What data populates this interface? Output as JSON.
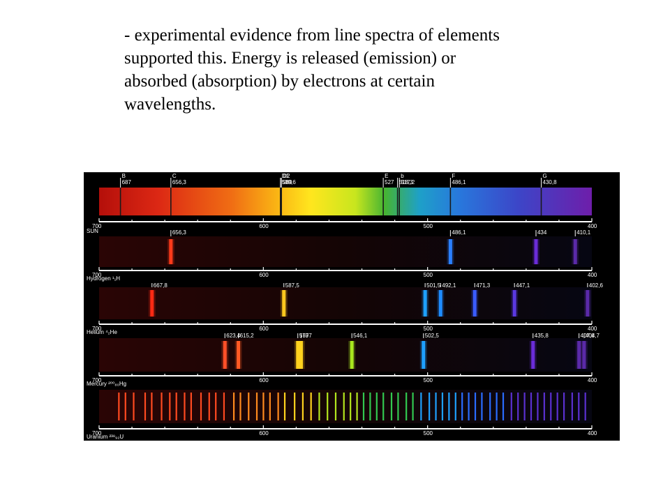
{
  "caption": {
    "lines": [
      "- experimental evidence from line spectra of elements",
      "supported this.  Energy is released (emission)  or",
      "absorbed (absorption) by electrons at certain",
      "wavelengths."
    ]
  },
  "axis": {
    "start_label": "700",
    "end_label": "400",
    "ticks": [
      {
        "value": 600,
        "label": "600"
      },
      {
        "value": 500,
        "label": "500"
      }
    ]
  },
  "panels": [
    {
      "id": "sun",
      "kind": "absorption",
      "element_label": "SUN",
      "lines": [
        {
          "letter": "B",
          "wavelength": 687,
          "label": "687"
        },
        {
          "letter": "C",
          "wavelength": 656.3,
          "label": "656,3"
        },
        {
          "letter": "D1",
          "wavelength": 589.6,
          "label": "589,6"
        },
        {
          "letter": "D2",
          "wavelength": 589,
          "label": "589"
        },
        {
          "letter": "E",
          "wavelength": 527,
          "label": "527"
        },
        {
          "letter": "",
          "wavelength": 518.3,
          "label": "518,3"
        },
        {
          "letter": "b",
          "wavelength": 517.2,
          "label": "517,2"
        },
        {
          "letter": "F",
          "wavelength": 486.1,
          "label": "486,1"
        },
        {
          "letter": "G",
          "wavelength": 430.8,
          "label": "430,8"
        }
      ]
    },
    {
      "id": "hydrogen",
      "kind": "emission",
      "element_label": "Hydrogen ¹₁H",
      "lines": [
        {
          "wavelength": 656.3,
          "label": "656,3",
          "color": "#ff3a1a"
        },
        {
          "wavelength": 486.1,
          "label": "486,1",
          "color": "#2a7fff"
        },
        {
          "wavelength": 434,
          "label": "434",
          "color": "#6a2cd8"
        },
        {
          "wavelength": 410.1,
          "label": "410,1",
          "color": "#5a2aa8"
        }
      ]
    },
    {
      "id": "helium",
      "kind": "emission",
      "element_label": "Helium ⁴₂He",
      "lines": [
        {
          "wavelength": 667.8,
          "label": "667,8",
          "color": "#ff2a14"
        },
        {
          "wavelength": 587.5,
          "label": "587,5",
          "color": "#ffc81e"
        },
        {
          "wavelength": 501.5,
          "label": "501,5",
          "color": "#1ea0ff"
        },
        {
          "wavelength": 492.1,
          "label": "492,1",
          "color": "#1e8cff"
        },
        {
          "wavelength": 471.3,
          "label": "471,3",
          "color": "#3a5cff"
        },
        {
          "wavelength": 447.1,
          "label": "447,1",
          "color": "#5a38e0"
        },
        {
          "wavelength": 402.6,
          "label": "402,6",
          "color": "#5a2aa8"
        }
      ]
    },
    {
      "id": "mercury",
      "kind": "emission",
      "element_label": "Mercury ²⁰⁰₈₀Hg",
      "lines": [
        {
          "wavelength": 623.4,
          "label": "623,4",
          "color": "#ff5028"
        },
        {
          "wavelength": 615.2,
          "label": "615,2",
          "color": "#ff5a24"
        },
        {
          "wavelength": 579,
          "label": "579",
          "color": "#ffd21e"
        },
        {
          "wavelength": 577,
          "label": "577",
          "color": "#ffd21e"
        },
        {
          "wavelength": 546.1,
          "label": "546,1",
          "color": "#a8e61e"
        },
        {
          "wavelength": 502.5,
          "label": "502,5",
          "color": "#1ea0ff"
        },
        {
          "wavelength": 435.8,
          "label": "435,8",
          "color": "#6a2cd8"
        },
        {
          "wavelength": 407.8,
          "label": "407,8",
          "color": "#5a2aa8"
        },
        {
          "wavelength": 404.7,
          "label": "404,7",
          "color": "#5a2aa8"
        }
      ]
    },
    {
      "id": "uranium",
      "kind": "emission",
      "element_label": "Uranium ²³⁸₉₂U",
      "lines": []
    }
  ],
  "uranium_line_wavelengths": [
    688,
    684,
    679,
    672,
    668,
    662,
    657,
    653,
    648,
    644,
    638,
    633,
    629,
    624,
    618,
    614,
    609,
    604,
    600,
    596,
    591,
    587,
    581,
    576,
    571,
    566,
    561,
    556,
    551,
    547,
    543,
    539,
    535,
    531,
    527,
    522,
    518,
    513,
    509,
    504,
    499,
    495,
    491,
    487,
    483,
    479,
    475,
    471,
    467,
    462,
    458,
    454,
    449,
    445,
    441,
    437,
    433,
    429,
    425,
    421,
    417,
    412,
    408,
    404
  ]
}
